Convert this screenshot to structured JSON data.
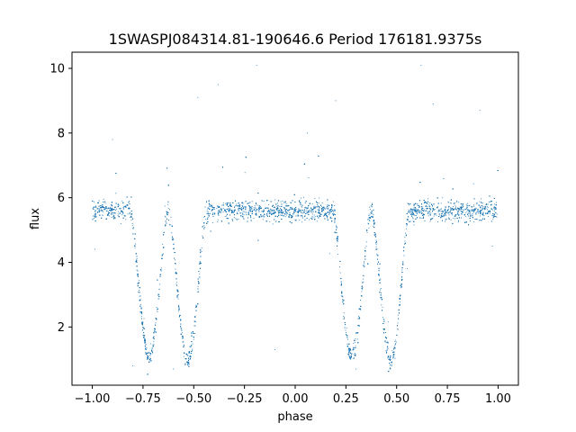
{
  "chart_data": {
    "type": "scatter",
    "title": "1SWASPJ084314.81-190646.6 Period 176181.9375s",
    "xlabel": "phase",
    "ylabel": "flux",
    "xlim": [
      -1.1,
      1.1
    ],
    "ylim": [
      0.2,
      10.5
    ],
    "xticks": [
      -1.0,
      -0.75,
      -0.5,
      -0.25,
      0.0,
      0.25,
      0.5,
      0.75,
      1.0
    ],
    "xtick_labels": [
      "−1.00",
      "−0.75",
      "−0.50",
      "−0.25",
      "0.00",
      "0.25",
      "0.50",
      "0.75",
      "1.00"
    ],
    "yticks": [
      2,
      4,
      6,
      8,
      10
    ],
    "ytick_labels": [
      "2",
      "4",
      "6",
      "8",
      "10"
    ],
    "grid": false,
    "point_color": "#1f77b4",
    "series": [
      {
        "baseline_flux": 5.6,
        "phase_range": [
          -1.0,
          1.0
        ],
        "eclipses": [
          {
            "phase_min": -0.72,
            "flux_min": 1.1
          },
          {
            "phase_min": -0.53,
            "flux_min": 1.0
          },
          {
            "phase_min": 0.28,
            "flux_min": 1.1
          },
          {
            "phase_min": 0.47,
            "flux_min": 1.0
          }
        ],
        "outliers": [
          {
            "x": -0.38,
            "y": 9.5
          },
          {
            "x": -0.19,
            "y": 10.1
          },
          {
            "x": 0.06,
            "y": 8.0
          },
          {
            "x": 0.62,
            "y": 10.1
          },
          {
            "x": 0.68,
            "y": 8.9
          },
          {
            "x": 0.91,
            "y": 8.7
          },
          {
            "x": -0.9,
            "y": 7.8
          },
          {
            "x": -0.48,
            "y": 9.1
          },
          {
            "x": 0.2,
            "y": 9.0
          },
          {
            "x": -0.6,
            "y": 0.7
          },
          {
            "x": 0.3,
            "y": 0.7
          },
          {
            "x": -0.1,
            "y": 1.3
          },
          {
            "x": -0.8,
            "y": 0.8
          }
        ]
      }
    ]
  }
}
